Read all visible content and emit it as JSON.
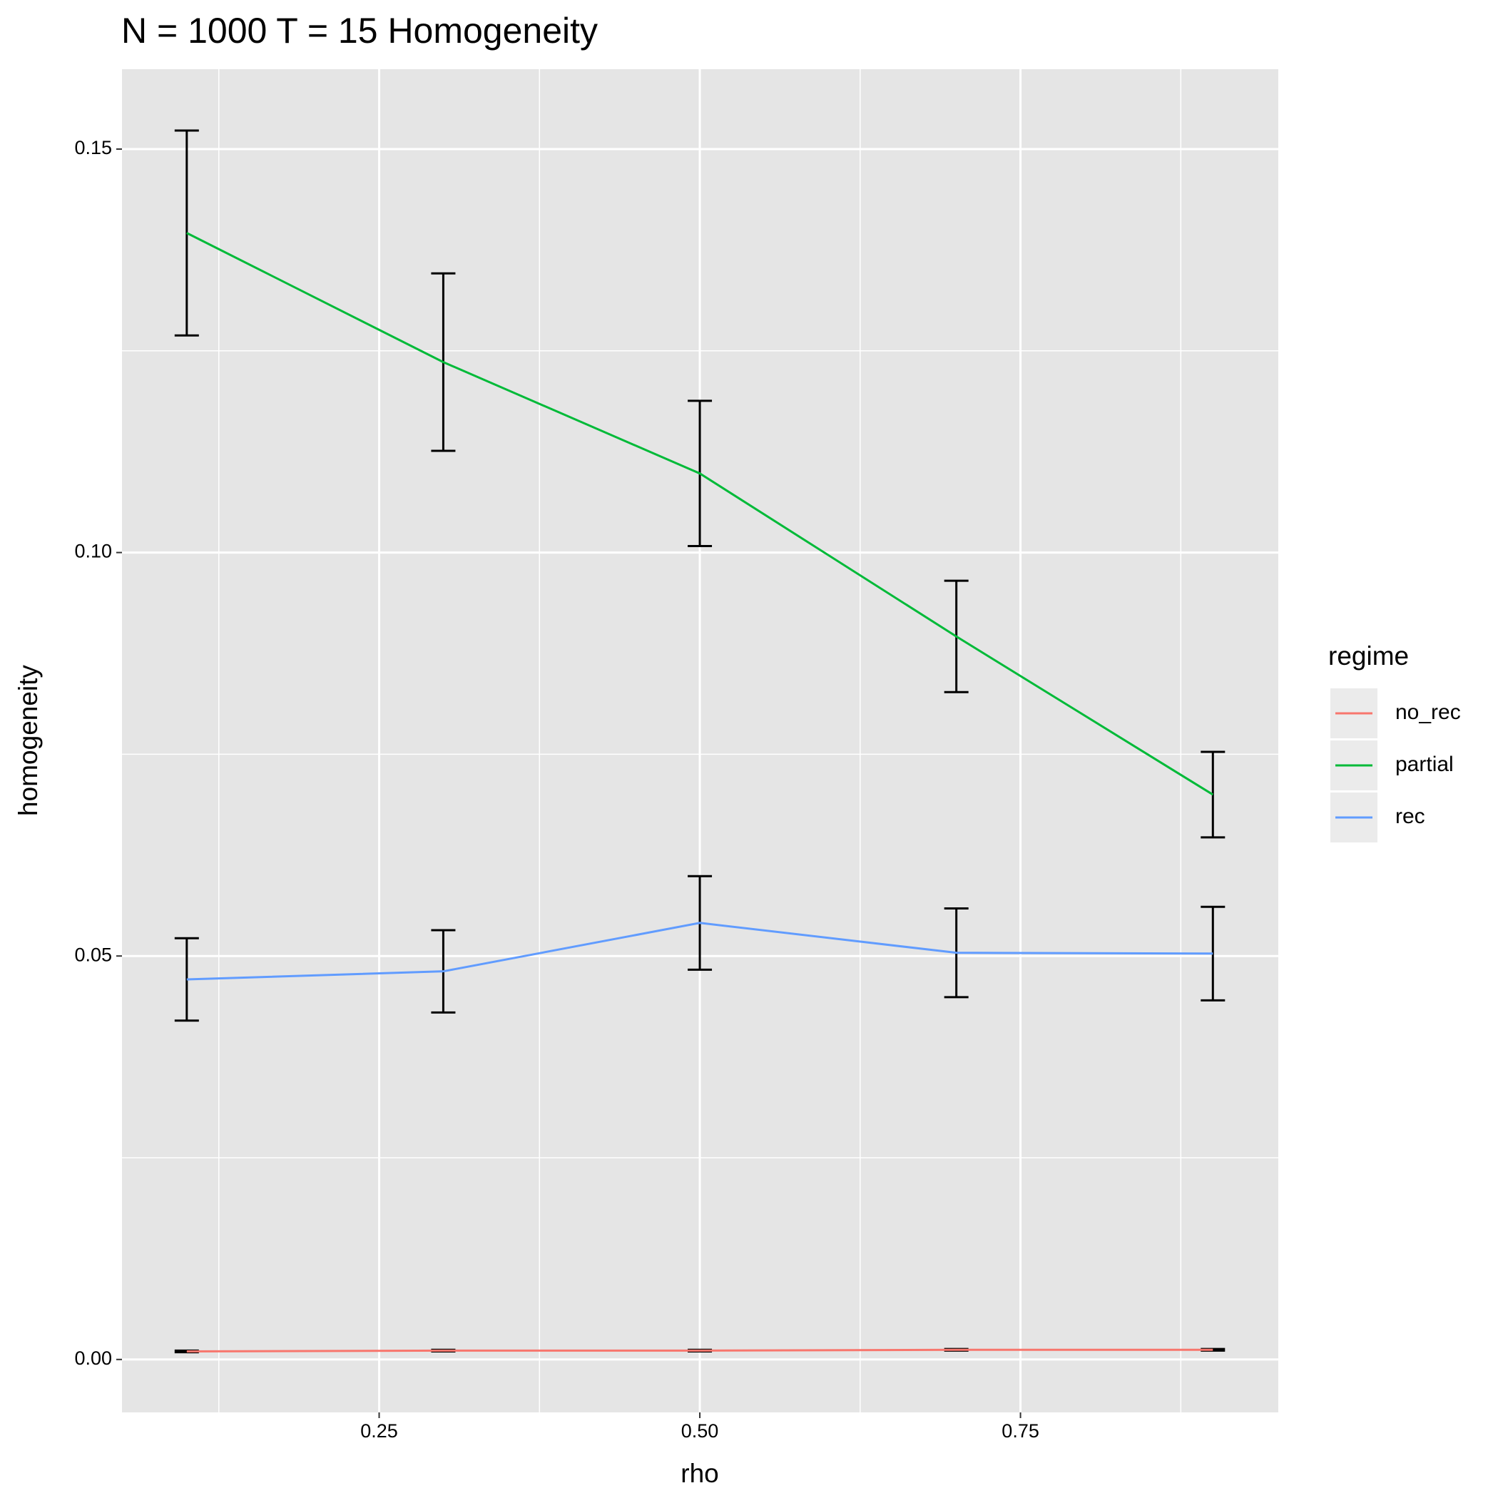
{
  "chart_data": {
    "type": "line",
    "title": "N = 1000 T = 15 Homogeneity",
    "x_label": "rho",
    "y_label": "homogeneity",
    "x": [
      0.1,
      0.3,
      0.5,
      0.7,
      0.9
    ],
    "series": [
      {
        "name": "no_rec",
        "color": "#f8766d",
        "values": [
          0.001,
          0.0011,
          0.0011,
          0.0012,
          0.0012
        ],
        "errors": [
          0.0001,
          0.0001,
          0.0001,
          0.0001,
          0.0001
        ]
      },
      {
        "name": "partial",
        "color": "#00ba38",
        "values": [
          0.1396,
          0.1236,
          0.1098,
          0.0896,
          0.07
        ],
        "errors": [
          0.0127,
          0.011,
          0.009,
          0.0069,
          0.0053
        ]
      },
      {
        "name": "rec",
        "color": "#619cff",
        "values": [
          0.0471,
          0.0481,
          0.0541,
          0.0504,
          0.0503
        ],
        "errors": [
          0.0051,
          0.0051,
          0.0058,
          0.0055,
          0.0058
        ]
      }
    ],
    "xlim": [
      0.0495,
      0.951
    ],
    "xticks": [
      {
        "value": 0.25,
        "label": "0.25"
      },
      {
        "value": 0.5,
        "label": "0.50"
      },
      {
        "value": 0.75,
        "label": "0.75"
      }
    ],
    "xminor_ticks": [
      0.125,
      0.375,
      0.625,
      0.875
    ],
    "ylim": [
      -0.00656,
      0.1599
    ],
    "yticks": [
      {
        "value": 0,
        "label": "0.00"
      },
      0.05,
      {
        "value": 0.1,
        "label": "0.10"
      },
      0.15
    ],
    "yminor_ticks": [
      0.025,
      0.075,
      0.125
    ],
    "legend_title": "regime",
    "legend_position": "right",
    "grid": true
  }
}
